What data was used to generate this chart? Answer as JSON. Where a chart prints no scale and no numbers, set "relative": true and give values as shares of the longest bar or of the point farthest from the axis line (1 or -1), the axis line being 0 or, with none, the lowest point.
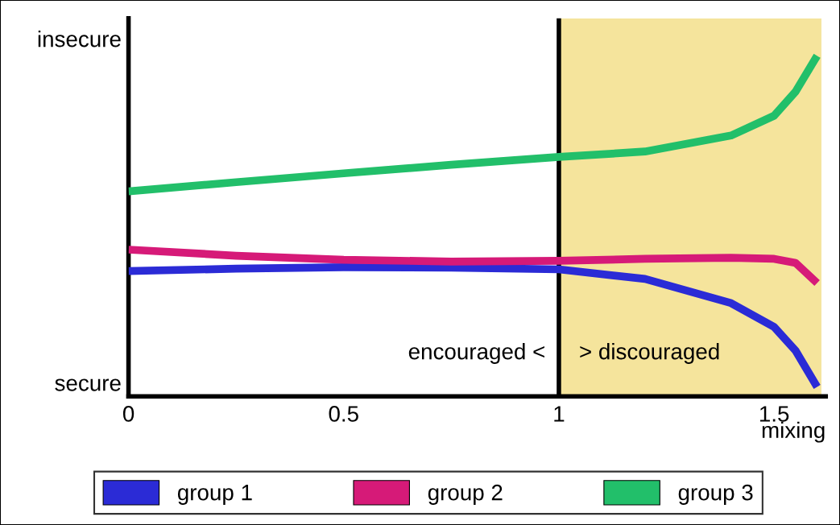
{
  "chart_data": {
    "type": "line",
    "xlabel": "mixing",
    "relative": true,
    "x": [
      0,
      0.25,
      0.5,
      0.75,
      1.0,
      1.2,
      1.4,
      1.5,
      1.55,
      1.6
    ],
    "series": [
      {
        "name": "group 1",
        "color": "#2b2bd6",
        "values": [
          0.368,
          0.375,
          0.379,
          0.378,
          0.373,
          0.345,
          0.274,
          0.204,
          0.134,
          0.028
        ]
      },
      {
        "name": "group 2",
        "color": "#d61a78",
        "values": [
          0.431,
          0.413,
          0.401,
          0.396,
          0.398,
          0.404,
          0.407,
          0.404,
          0.392,
          0.333
        ]
      },
      {
        "name": "group 3",
        "color": "#22bf6a",
        "values": [
          0.602,
          0.629,
          0.655,
          0.68,
          0.703,
          0.719,
          0.766,
          0.824,
          0.895,
          1
        ]
      }
    ],
    "xlim": [
      0,
      1.62
    ],
    "xticks": [
      0,
      0.5,
      1,
      1.5
    ],
    "ref_lines": [
      {
        "axis": "x",
        "value": 1,
        "color": "#000000"
      }
    ],
    "bands": [
      {
        "axis": "x",
        "from": 1,
        "to": 1.61,
        "color": "#f5e49c"
      }
    ],
    "annotations": [
      "insecure",
      "secure",
      {
        "text": "encouraged <",
        "x": 1,
        "y": 0.126
      },
      {
        "text": "> discouraged",
        "x": 1,
        "y": 0.126
      }
    ],
    "grid": false,
    "legend": "bottom",
    "line_style": "solid",
    "marker": "none"
  }
}
